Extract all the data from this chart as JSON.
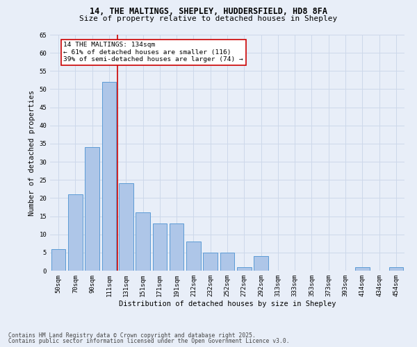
{
  "title_line1": "14, THE MALTINGS, SHEPLEY, HUDDERSFIELD, HD8 8FA",
  "title_line2": "Size of property relative to detached houses in Shepley",
  "xlabel": "Distribution of detached houses by size in Shepley",
  "ylabel": "Number of detached properties",
  "categories": [
    "50sqm",
    "70sqm",
    "90sqm",
    "111sqm",
    "131sqm",
    "151sqm",
    "171sqm",
    "191sqm",
    "212sqm",
    "232sqm",
    "252sqm",
    "272sqm",
    "292sqm",
    "313sqm",
    "333sqm",
    "353sqm",
    "373sqm",
    "393sqm",
    "414sqm",
    "434sqm",
    "454sqm"
  ],
  "values": [
    6,
    21,
    34,
    52,
    24,
    16,
    13,
    13,
    8,
    5,
    5,
    1,
    4,
    0,
    0,
    0,
    0,
    0,
    1,
    0,
    1
  ],
  "bar_color": "#aec6e8",
  "bar_edge_color": "#5b9bd5",
  "vline_color": "#cc0000",
  "annotation_text": "14 THE MALTINGS: 134sqm\n← 61% of detached houses are smaller (116)\n39% of semi-detached houses are larger (74) →",
  "annotation_box_color": "#ffffff",
  "annotation_box_edge_color": "#cc0000",
  "ylim": [
    0,
    65
  ],
  "yticks": [
    0,
    5,
    10,
    15,
    20,
    25,
    30,
    35,
    40,
    45,
    50,
    55,
    60,
    65
  ],
  "grid_color": "#cdd8ea",
  "background_color": "#e8eef8",
  "footer_line1": "Contains HM Land Registry data © Crown copyright and database right 2025.",
  "footer_line2": "Contains public sector information licensed under the Open Government Licence v3.0.",
  "title_fontsize": 8.5,
  "subtitle_fontsize": 8,
  "axis_label_fontsize": 7.5,
  "tick_fontsize": 6.5,
  "annotation_fontsize": 6.8,
  "footer_fontsize": 5.8
}
